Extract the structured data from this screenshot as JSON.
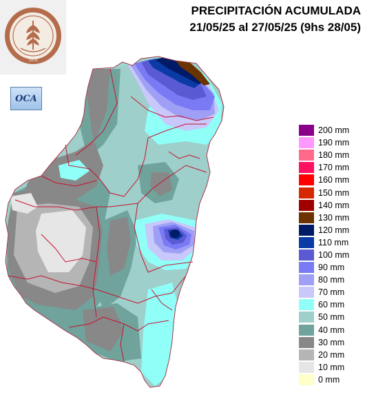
{
  "header": {
    "title_line1": "PRECIPITACIÓN ACUMULADA",
    "title_line2": "21/05/25 al 27/05/25 (9hs 28/05)"
  },
  "logo": {
    "seal_text_top": "BOLSA DE CEREALES DE ENTRE RIOS",
    "seal_year": "1979",
    "badge_text": "OCA"
  },
  "map": {
    "region": "Entre Ríos",
    "units": "mm",
    "colors": {
      "border": "#c8102e",
      "outline": "#7a7a7a"
    }
  },
  "legend": {
    "items": [
      {
        "label": "200 mm",
        "color": "#8b008b"
      },
      {
        "label": "190 mm",
        "color": "#ff99ff"
      },
      {
        "label": "180 mm",
        "color": "#ff6a8a"
      },
      {
        "label": "170 mm",
        "color": "#ff1060"
      },
      {
        "label": "160 mm",
        "color": "#ff0000"
      },
      {
        "label": "150 mm",
        "color": "#d62800"
      },
      {
        "label": "140 mm",
        "color": "#a00000"
      },
      {
        "label": "130 mm",
        "color": "#6b3300"
      },
      {
        "label": "120 mm",
        "color": "#001a66"
      },
      {
        "label": "110 mm",
        "color": "#0a3aa6"
      },
      {
        "label": "100 mm",
        "color": "#5a5ad2"
      },
      {
        "label": "90 mm",
        "color": "#7a7af5"
      },
      {
        "label": "80 mm",
        "color": "#9fa0f5"
      },
      {
        "label": "70 mm",
        "color": "#c8c8fa"
      },
      {
        "label": "60 mm",
        "color": "#8ffff8"
      },
      {
        "label": "50 mm",
        "color": "#9ecfca"
      },
      {
        "label": "40 mm",
        "color": "#6fa39c"
      },
      {
        "label": "30 mm",
        "color": "#888888"
      },
      {
        "label": "20 mm",
        "color": "#b5b5b5"
      },
      {
        "label": "10 mm",
        "color": "#e6e6e6"
      },
      {
        "label": "0 mm",
        "color": "#ffffc8"
      }
    ]
  }
}
